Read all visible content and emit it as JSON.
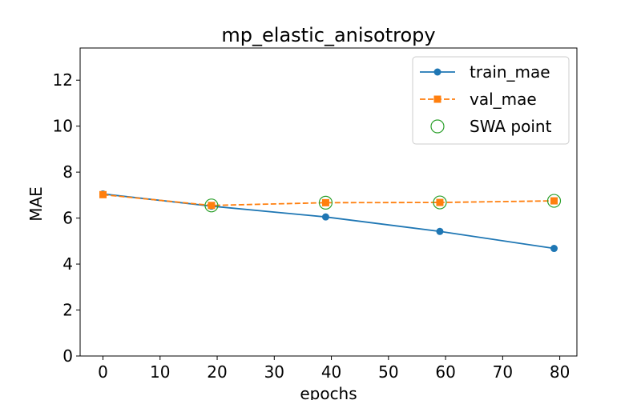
{
  "chart_data": {
    "type": "line",
    "title": "mp_elastic_anisotropy",
    "xlabel": "epochs",
    "ylabel": "MAE",
    "xlim": [
      -4,
      83
    ],
    "ylim": [
      0,
      13.4
    ],
    "xticks": [
      0,
      10,
      20,
      30,
      40,
      50,
      60,
      70,
      80
    ],
    "yticks": [
      0,
      2,
      4,
      6,
      8,
      10,
      12
    ],
    "grid": false,
    "legend_position": "top-right",
    "series": [
      {
        "name": "train_mae",
        "style": "solid",
        "marker": "circle",
        "color": "#1f77b4",
        "x": [
          0,
          19,
          39,
          59,
          79
        ],
        "y": [
          7.05,
          6.52,
          6.05,
          5.42,
          4.68
        ]
      },
      {
        "name": "val_mae",
        "style": "dashed",
        "marker": "square",
        "color": "#ff7f0e",
        "x": [
          0,
          19,
          39,
          59,
          79
        ],
        "y": [
          7.02,
          6.55,
          6.67,
          6.68,
          6.75
        ]
      },
      {
        "name": "SWA point",
        "style": "none",
        "marker": "open-circle",
        "color": "#2ca02c",
        "x": [
          19,
          39,
          59,
          79
        ],
        "y": [
          6.55,
          6.67,
          6.68,
          6.75
        ]
      }
    ]
  }
}
